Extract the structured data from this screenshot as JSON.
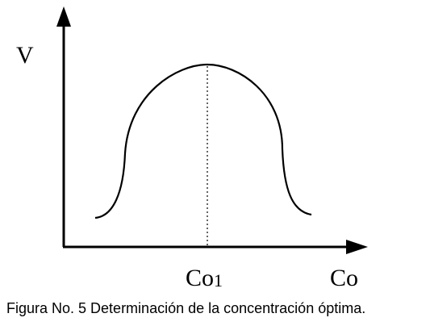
{
  "figure": {
    "y_axis_label": "V",
    "x_axis_label": "Co",
    "optimum_label": "Co",
    "optimum_label_subscript": "1",
    "caption": "Figura No. 5  Determinación de la concentración óptima."
  },
  "colors": {
    "ink": "#000000",
    "background": "#ffffff"
  }
}
